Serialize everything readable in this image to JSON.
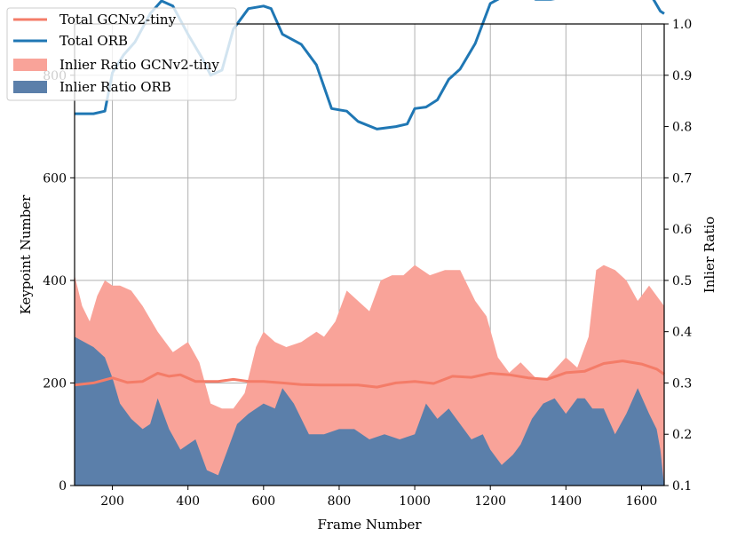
{
  "chart_data": {
    "type": "line-area-dual-axis",
    "title": "",
    "xlabel": "Frame Number",
    "ylabel_left": "Keypoint Number",
    "ylabel_right": "Inlier Ratio",
    "xlim": [
      100,
      1660
    ],
    "ylim_left": [
      0,
      900
    ],
    "ylim_right": [
      0.1,
      1.0
    ],
    "grid": true,
    "legend_position": "top-left",
    "x_ticks": [
      200,
      400,
      600,
      800,
      1000,
      1200,
      1400,
      1600
    ],
    "x_tick_labels": [
      "200",
      "400",
      "600",
      "800",
      "1000",
      "1200",
      "1400",
      "1600"
    ],
    "y_left_ticks": [
      0,
      200,
      400,
      600,
      800
    ],
    "y_left_tick_labels": [
      "0",
      "200",
      "400",
      "600",
      "800"
    ],
    "y_right_ticks": [
      0.1,
      0.2,
      0.3,
      0.4,
      0.5,
      0.6,
      0.7,
      0.8,
      0.9,
      1.0
    ],
    "y_right_tick_labels": [
      "0.1",
      "0.2",
      "0.3",
      "0.4",
      "0.5",
      "0.6",
      "0.7",
      "0.8",
      "0.9",
      "1.0"
    ],
    "colors": {
      "total_gcn": "#f47c68",
      "total_orb": "#1f77b4",
      "inlier_gcn": "#f9a399",
      "inlier_orb": "#5b7faa"
    },
    "legend": [
      {
        "label": "Total GCNv2-tiny",
        "kind": "line",
        "color": "#f47c68"
      },
      {
        "label": "Total ORB",
        "kind": "line",
        "color": "#1f77b4"
      },
      {
        "label": "Inlier Ratio GCNv2-tiny",
        "kind": "patch",
        "color": "#f9a399"
      },
      {
        "label": "Inlier Ratio ORB",
        "kind": "patch",
        "color": "#5b7faa"
      }
    ],
    "series": [
      {
        "name": "Total GCNv2-tiny",
        "axis": "left",
        "kind": "line",
        "points": [
          [
            100,
            196
          ],
          [
            150,
            200
          ],
          [
            180,
            206
          ],
          [
            200,
            210
          ],
          [
            240,
            201
          ],
          [
            280,
            203
          ],
          [
            320,
            219
          ],
          [
            350,
            213
          ],
          [
            380,
            216
          ],
          [
            420,
            203
          ],
          [
            480,
            203
          ],
          [
            520,
            207
          ],
          [
            560,
            203
          ],
          [
            600,
            203
          ],
          [
            650,
            200
          ],
          [
            700,
            197
          ],
          [
            750,
            196
          ],
          [
            800,
            196
          ],
          [
            850,
            196
          ],
          [
            900,
            192
          ],
          [
            950,
            200
          ],
          [
            1000,
            203
          ],
          [
            1050,
            199
          ],
          [
            1100,
            213
          ],
          [
            1150,
            211
          ],
          [
            1200,
            219
          ],
          [
            1250,
            216
          ],
          [
            1300,
            210
          ],
          [
            1350,
            207
          ],
          [
            1400,
            220
          ],
          [
            1450,
            223
          ],
          [
            1500,
            238
          ],
          [
            1550,
            243
          ],
          [
            1600,
            237
          ],
          [
            1640,
            227
          ],
          [
            1660,
            217
          ]
        ]
      },
      {
        "name": "Total ORB",
        "axis": "left",
        "kind": "line",
        "points": [
          [
            100,
            725
          ],
          [
            150,
            725
          ],
          [
            180,
            730
          ],
          [
            200,
            805
          ],
          [
            230,
            840
          ],
          [
            260,
            865
          ],
          [
            300,
            920
          ],
          [
            330,
            945
          ],
          [
            360,
            935
          ],
          [
            400,
            880
          ],
          [
            440,
            830
          ],
          [
            460,
            800
          ],
          [
            490,
            810
          ],
          [
            520,
            890
          ],
          [
            560,
            930
          ],
          [
            600,
            935
          ],
          [
            620,
            930
          ],
          [
            650,
            880
          ],
          [
            700,
            860
          ],
          [
            740,
            820
          ],
          [
            780,
            735
          ],
          [
            820,
            730
          ],
          [
            850,
            710
          ],
          [
            900,
            695
          ],
          [
            950,
            700
          ],
          [
            980,
            705
          ],
          [
            1000,
            735
          ],
          [
            1030,
            738
          ],
          [
            1060,
            752
          ],
          [
            1090,
            792
          ],
          [
            1120,
            812
          ],
          [
            1160,
            862
          ],
          [
            1200,
            940
          ],
          [
            1250,
            960
          ],
          [
            1280,
            965
          ],
          [
            1320,
            948
          ],
          [
            1360,
            948
          ],
          [
            1400,
            953
          ],
          [
            1430,
            960
          ],
          [
            1460,
            985
          ],
          [
            1480,
            993
          ],
          [
            1500,
            990
          ],
          [
            1550,
            985
          ],
          [
            1580,
            980
          ],
          [
            1600,
            970
          ],
          [
            1630,
            950
          ],
          [
            1650,
            925
          ],
          [
            1660,
            920
          ]
        ]
      },
      {
        "name": "Inlier Ratio GCNv2-tiny",
        "axis": "right",
        "kind": "area",
        "points": [
          [
            100,
            0.51
          ],
          [
            120,
            0.45
          ],
          [
            140,
            0.42
          ],
          [
            160,
            0.47
          ],
          [
            180,
            0.5
          ],
          [
            200,
            0.49
          ],
          [
            220,
            0.49
          ],
          [
            250,
            0.48
          ],
          [
            280,
            0.45
          ],
          [
            320,
            0.4
          ],
          [
            360,
            0.36
          ],
          [
            380,
            0.37
          ],
          [
            400,
            0.38
          ],
          [
            430,
            0.34
          ],
          [
            460,
            0.26
          ],
          [
            490,
            0.25
          ],
          [
            520,
            0.25
          ],
          [
            550,
            0.28
          ],
          [
            580,
            0.37
          ],
          [
            600,
            0.4
          ],
          [
            630,
            0.38
          ],
          [
            660,
            0.37
          ],
          [
            700,
            0.38
          ],
          [
            740,
            0.4
          ],
          [
            760,
            0.39
          ],
          [
            790,
            0.42
          ],
          [
            820,
            0.48
          ],
          [
            850,
            0.46
          ],
          [
            880,
            0.44
          ],
          [
            910,
            0.5
          ],
          [
            940,
            0.51
          ],
          [
            970,
            0.51
          ],
          [
            1000,
            0.53
          ],
          [
            1040,
            0.51
          ],
          [
            1080,
            0.52
          ],
          [
            1120,
            0.52
          ],
          [
            1160,
            0.46
          ],
          [
            1190,
            0.43
          ],
          [
            1220,
            0.35
          ],
          [
            1250,
            0.32
          ],
          [
            1280,
            0.34
          ],
          [
            1320,
            0.31
          ],
          [
            1350,
            0.31
          ],
          [
            1400,
            0.35
          ],
          [
            1430,
            0.33
          ],
          [
            1460,
            0.39
          ],
          [
            1480,
            0.52
          ],
          [
            1500,
            0.53
          ],
          [
            1530,
            0.52
          ],
          [
            1560,
            0.5
          ],
          [
            1590,
            0.46
          ],
          [
            1620,
            0.49
          ],
          [
            1650,
            0.46
          ],
          [
            1660,
            0.45
          ]
        ]
      },
      {
        "name": "Inlier Ratio ORB",
        "axis": "right",
        "kind": "area",
        "points": [
          [
            100,
            0.39
          ],
          [
            150,
            0.37
          ],
          [
            180,
            0.35
          ],
          [
            200,
            0.31
          ],
          [
            220,
            0.26
          ],
          [
            250,
            0.23
          ],
          [
            280,
            0.21
          ],
          [
            300,
            0.22
          ],
          [
            320,
            0.27
          ],
          [
            350,
            0.21
          ],
          [
            380,
            0.17
          ],
          [
            400,
            0.18
          ],
          [
            420,
            0.19
          ],
          [
            450,
            0.13
          ],
          [
            480,
            0.12
          ],
          [
            500,
            0.16
          ],
          [
            530,
            0.22
          ],
          [
            560,
            0.24
          ],
          [
            600,
            0.26
          ],
          [
            630,
            0.25
          ],
          [
            650,
            0.29
          ],
          [
            680,
            0.26
          ],
          [
            720,
            0.2
          ],
          [
            760,
            0.2
          ],
          [
            800,
            0.21
          ],
          [
            840,
            0.21
          ],
          [
            880,
            0.19
          ],
          [
            920,
            0.2
          ],
          [
            960,
            0.19
          ],
          [
            1000,
            0.2
          ],
          [
            1030,
            0.26
          ],
          [
            1060,
            0.23
          ],
          [
            1090,
            0.25
          ],
          [
            1120,
            0.22
          ],
          [
            1150,
            0.19
          ],
          [
            1180,
            0.2
          ],
          [
            1200,
            0.17
          ],
          [
            1230,
            0.14
          ],
          [
            1260,
            0.16
          ],
          [
            1280,
            0.18
          ],
          [
            1310,
            0.23
          ],
          [
            1340,
            0.26
          ],
          [
            1370,
            0.27
          ],
          [
            1400,
            0.24
          ],
          [
            1430,
            0.27
          ],
          [
            1450,
            0.27
          ],
          [
            1470,
            0.25
          ],
          [
            1500,
            0.25
          ],
          [
            1530,
            0.2
          ],
          [
            1560,
            0.24
          ],
          [
            1590,
            0.29
          ],
          [
            1620,
            0.24
          ],
          [
            1640,
            0.21
          ],
          [
            1650,
            0.17
          ],
          [
            1660,
            0.1
          ]
        ]
      }
    ]
  }
}
